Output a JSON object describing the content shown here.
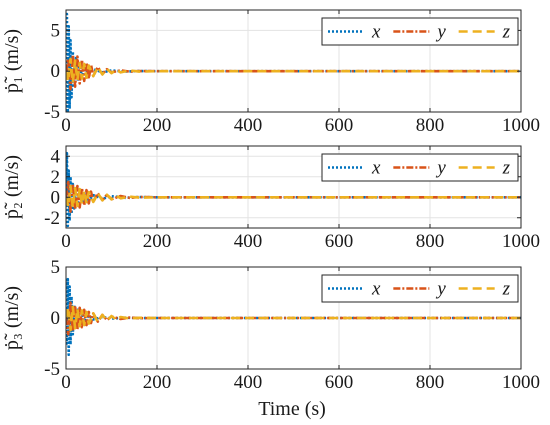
{
  "figure": {
    "xlabel": "Time (s)"
  },
  "chart_data": [
    {
      "type": "line",
      "ylabel": "ṗ̃₁ (m/s)",
      "xlim": [
        0,
        1000
      ],
      "ylim": [
        -5,
        7.5
      ],
      "xticks": [
        "0",
        "200",
        "400",
        "600",
        "800",
        "1000"
      ],
      "yticks": [
        {
          "v": -5,
          "label": "-5"
        },
        {
          "v": 0,
          "label": "0"
        },
        {
          "v": 5,
          "label": "5"
        }
      ],
      "grid": true,
      "legend_position": "top-right",
      "series": [
        {
          "name": "x",
          "color": "#0072BD",
          "dash": "2,2",
          "x": [
            0,
            2,
            4,
            6,
            8,
            10,
            12,
            15,
            18,
            22,
            26,
            30,
            35,
            40,
            50,
            60,
            80,
            100,
            130,
            160,
            200,
            1000
          ],
          "y": [
            0,
            7,
            -5.3,
            5.5,
            -4.6,
            3.8,
            -3.2,
            2.4,
            -2,
            1.6,
            -1.2,
            0.9,
            -0.7,
            0.5,
            -0.35,
            0.25,
            -0.15,
            0.1,
            -0.05,
            0.02,
            0,
            0
          ]
        },
        {
          "name": "y",
          "color": "#D95319",
          "dash": "7,2,2,2",
          "x": [
            0,
            5,
            10,
            15,
            20,
            25,
            30,
            35,
            40,
            45,
            50,
            55,
            60,
            70,
            80,
            90,
            100,
            120,
            140,
            160,
            200,
            1000
          ],
          "y": [
            0,
            1.5,
            -2.2,
            2,
            -1.9,
            1.8,
            -1.5,
            1.4,
            -1.2,
            1,
            -0.9,
            0.8,
            -0.6,
            0.5,
            -0.35,
            0.25,
            -0.15,
            0.1,
            -0.05,
            0.02,
            0,
            0
          ]
        },
        {
          "name": "z",
          "color": "#EDB120",
          "dash": "9,5",
          "x": [
            0,
            5,
            10,
            15,
            20,
            25,
            30,
            35,
            40,
            45,
            50,
            60,
            70,
            80,
            90,
            100,
            110,
            120,
            140,
            160,
            200,
            1000
          ],
          "y": [
            0,
            -1.2,
            1.5,
            -1.4,
            1.3,
            -1.1,
            1,
            -0.9,
            0.9,
            -0.8,
            0.7,
            -0.6,
            0.5,
            -0.4,
            0.3,
            -0.25,
            0.2,
            -0.15,
            0.1,
            -0.05,
            0,
            0
          ]
        }
      ]
    },
    {
      "type": "line",
      "ylabel": "ṗ̃₂ (m/s)",
      "xlim": [
        0,
        1000
      ],
      "ylim": [
        -3,
        5
      ],
      "xticks": [
        "0",
        "200",
        "400",
        "600",
        "800",
        "1000"
      ],
      "yticks": [
        {
          "v": -2,
          "label": "-2"
        },
        {
          "v": 0,
          "label": "0"
        },
        {
          "v": 2,
          "label": "2"
        },
        {
          "v": 4,
          "label": "4"
        }
      ],
      "grid": true,
      "legend_position": "top-right",
      "series": [
        {
          "name": "x",
          "color": "#0072BD",
          "dash": "2,2",
          "x": [
            0,
            2,
            4,
            6,
            8,
            10,
            12,
            15,
            18,
            22,
            26,
            30,
            35,
            40,
            50,
            60,
            80,
            100,
            130,
            160,
            200,
            1000
          ],
          "y": [
            0,
            4.3,
            -2.8,
            2.6,
            -2.3,
            2,
            -1.6,
            1.3,
            -1.1,
            0.9,
            -0.7,
            0.6,
            -0.5,
            0.4,
            -0.3,
            0.2,
            -0.15,
            0.1,
            -0.05,
            0.02,
            0,
            0
          ]
        },
        {
          "name": "y",
          "color": "#D95319",
          "dash": "7,2,2,2",
          "x": [
            0,
            5,
            10,
            15,
            20,
            25,
            30,
            35,
            40,
            45,
            50,
            55,
            60,
            70,
            80,
            90,
            100,
            120,
            140,
            160,
            200,
            1000
          ],
          "y": [
            0,
            1.5,
            -1.4,
            1.3,
            -1.2,
            1.1,
            -1,
            0.9,
            -0.8,
            0.7,
            -0.6,
            0.55,
            -0.45,
            0.4,
            -0.3,
            0.25,
            -0.2,
            0.12,
            -0.06,
            0.02,
            0,
            0
          ]
        },
        {
          "name": "z",
          "color": "#EDB120",
          "dash": "9,5",
          "x": [
            0,
            5,
            10,
            15,
            20,
            25,
            30,
            35,
            40,
            45,
            50,
            60,
            70,
            80,
            90,
            100,
            110,
            120,
            140,
            160,
            200,
            1000
          ],
          "y": [
            0,
            -0.9,
            1.1,
            -1,
            0.9,
            -0.85,
            0.8,
            -0.7,
            0.65,
            -0.6,
            0.5,
            -0.45,
            0.4,
            -0.3,
            0.25,
            -0.2,
            0.15,
            -0.1,
            0.06,
            -0.03,
            0,
            0
          ]
        }
      ]
    },
    {
      "type": "line",
      "ylabel": "ṗ̃₃ (m/s)",
      "xlim": [
        0,
        1000
      ],
      "ylim": [
        -5,
        5
      ],
      "xticks": [
        "0",
        "200",
        "400",
        "600",
        "800",
        "1000"
      ],
      "yticks": [
        {
          "v": -5,
          "label": "-5"
        },
        {
          "v": 0,
          "label": "0"
        },
        {
          "v": 5,
          "label": "5"
        }
      ],
      "grid": true,
      "legend_position": "top-right",
      "series": [
        {
          "name": "x",
          "color": "#0072BD",
          "dash": "2,2",
          "x": [
            0,
            2,
            4,
            6,
            8,
            10,
            12,
            15,
            18,
            22,
            26,
            30,
            35,
            40,
            50,
            60,
            80,
            100,
            130,
            160,
            200,
            1000
          ],
          "y": [
            0,
            -2.5,
            3.8,
            -3.6,
            3.1,
            -2.6,
            2.1,
            -1.6,
            1.3,
            -1,
            0.8,
            -0.6,
            0.45,
            -0.35,
            0.25,
            -0.15,
            0.1,
            -0.06,
            0.03,
            -0.01,
            0,
            0
          ]
        },
        {
          "name": "y",
          "color": "#D95319",
          "dash": "7,2,2,2",
          "x": [
            0,
            5,
            10,
            15,
            20,
            25,
            30,
            35,
            40,
            45,
            50,
            55,
            60,
            70,
            80,
            90,
            100,
            120,
            140,
            160,
            200,
            1000
          ],
          "y": [
            0,
            -1.6,
            1.5,
            -1.3,
            1.2,
            -1.1,
            1,
            -0.9,
            0.8,
            -0.7,
            0.6,
            -0.5,
            0.45,
            -0.35,
            0.3,
            -0.2,
            0.15,
            -0.1,
            0.05,
            -0.02,
            0,
            0
          ]
        },
        {
          "name": "z",
          "color": "#EDB120",
          "dash": "9,5",
          "x": [
            0,
            5,
            10,
            15,
            20,
            25,
            30,
            35,
            40,
            45,
            50,
            60,
            70,
            80,
            90,
            100,
            110,
            120,
            140,
            160,
            200,
            1000
          ],
          "y": [
            0,
            1,
            -1.2,
            1.1,
            -1,
            0.9,
            -0.8,
            0.75,
            -0.7,
            0.6,
            -0.55,
            0.45,
            -0.4,
            0.3,
            -0.25,
            0.2,
            -0.15,
            0.1,
            -0.05,
            0.02,
            0,
            0
          ]
        }
      ]
    }
  ]
}
